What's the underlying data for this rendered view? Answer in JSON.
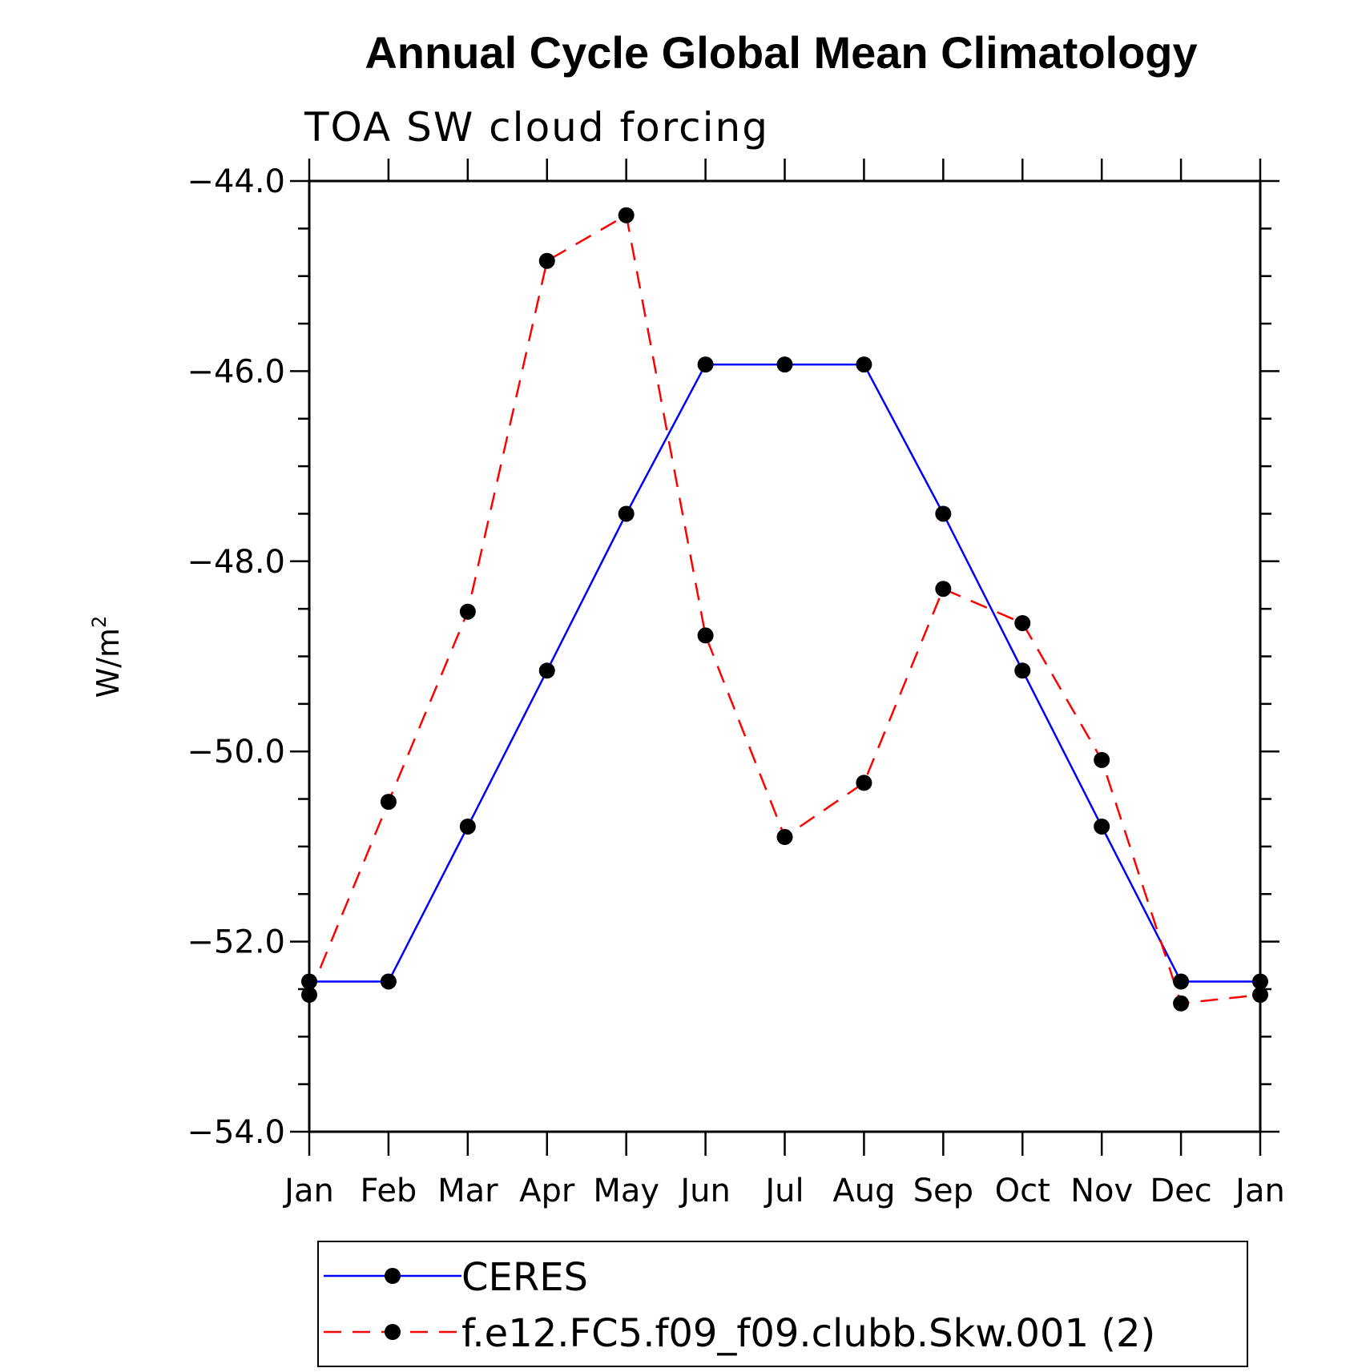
{
  "chart_data": {
    "type": "line",
    "title": "Annual Cycle Global Mean Climatology",
    "subtitle": "TOA SW cloud forcing",
    "xlabel": "",
    "ylabel": "W/m",
    "ylabel_superscript": "2",
    "ylim": [
      -54.0,
      -44.0
    ],
    "yticks": [
      -44.0,
      -46.0,
      -48.0,
      -50.0,
      -52.0,
      -54.0
    ],
    "ytick_labels": [
      "−44.0",
      "−46.0",
      "−48.0",
      "−50.0",
      "−52.0",
      "−54.0"
    ],
    "categories": [
      "Jan",
      "Feb",
      "Mar",
      "Apr",
      "May",
      "Jun",
      "Jul",
      "Aug",
      "Sep",
      "Oct",
      "Nov",
      "Dec",
      "Jan"
    ],
    "series": [
      {
        "name": "CERES",
        "color": "#0000ff",
        "dash": "solid",
        "values": [
          -52.42,
          -52.42,
          -50.79,
          -49.15,
          -47.5,
          -45.93,
          -45.93,
          -45.93,
          -47.5,
          -49.15,
          -50.79,
          -52.42,
          -52.42
        ]
      },
      {
        "name": "f.e12.FC5.f09_f09.clubb.Skw.001 (2)",
        "color": "#ff0000",
        "dash": "dashed",
        "values": [
          -52.56,
          -50.53,
          -48.53,
          -44.84,
          -44.36,
          -48.78,
          -50.9,
          -50.33,
          -48.29,
          -48.65,
          -50.09,
          -52.65,
          -52.56
        ]
      }
    ],
    "legend_position": "bottom"
  }
}
